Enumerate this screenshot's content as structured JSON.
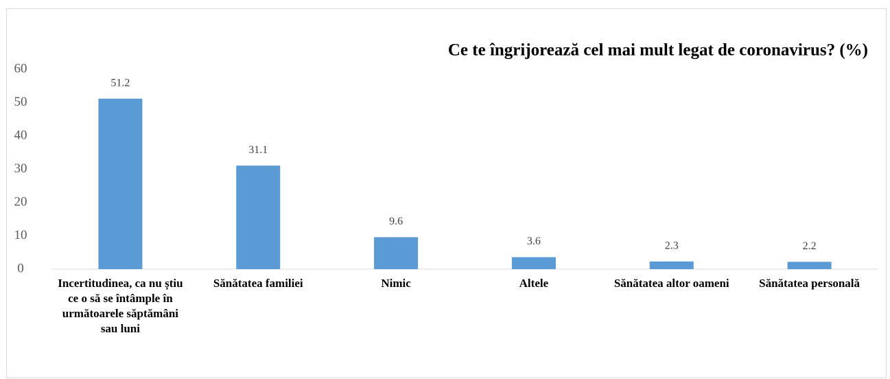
{
  "chart_data": {
    "type": "bar",
    "title": "Ce te îngrijorează cel mai mult legat de coronavirus? (%)",
    "categories": [
      "Incertitudinea, ca nu știu ce o să se întâmple în următoarele săptămâni sau luni",
      "Sănătatea familiei",
      "Nimic",
      "Altele",
      "Sănătatea altor oameni",
      "Sănătatea personală"
    ],
    "values": [
      51.2,
      31.1,
      9.6,
      3.6,
      2.3,
      2.2
    ],
    "color": "#5b9bd5",
    "ylim": [
      0,
      60
    ],
    "yticks": [
      0,
      10,
      20,
      30,
      40,
      50,
      60
    ],
    "grid": false
  }
}
